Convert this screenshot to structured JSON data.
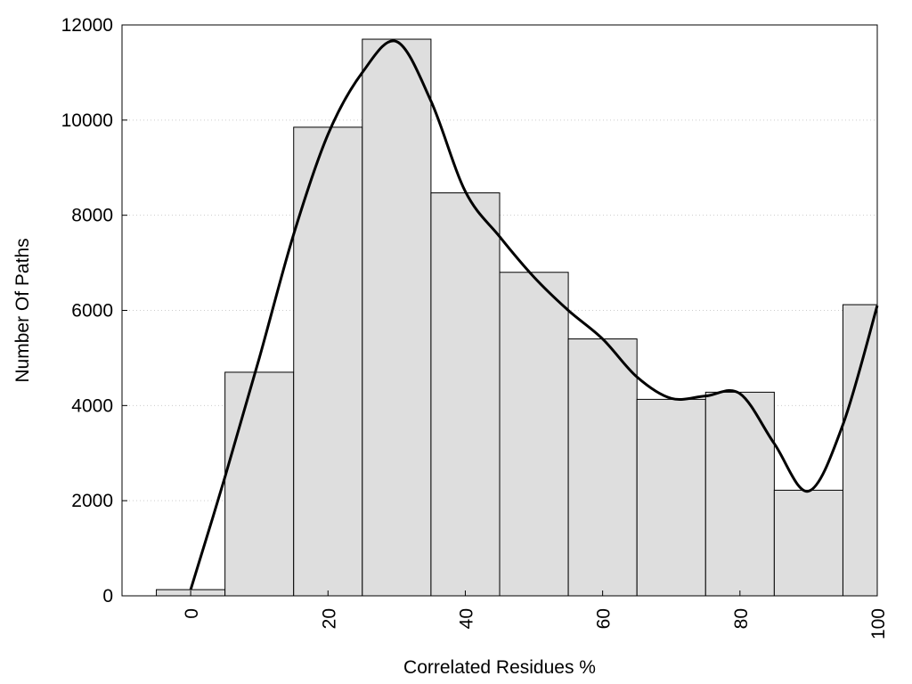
{
  "chart_data": {
    "type": "bar",
    "title": "",
    "xlabel": "Correlated Residues %",
    "ylabel": "Number Of Paths",
    "categories": [
      "0",
      "10",
      "20",
      "30",
      "40",
      "50",
      "60",
      "70",
      "80",
      "90",
      "100"
    ],
    "bin_width": 10,
    "values": [
      130,
      4700,
      9850,
      11700,
      8470,
      6800,
      5400,
      4130,
      4280,
      2220,
      6120
    ],
    "curve": {
      "x": [
        0,
        5,
        10,
        15,
        20,
        25,
        30,
        35,
        40,
        45,
        50,
        55,
        60,
        65,
        70,
        75,
        80,
        85,
        90,
        95,
        100
      ],
      "y": [
        130,
        2500,
        5000,
        7600,
        9700,
        11000,
        11650,
        10400,
        8500,
        7550,
        6700,
        6000,
        5400,
        4600,
        4150,
        4200,
        4250,
        3200,
        2200,
        3600,
        6100
      ]
    },
    "xlim": [
      -10,
      100
    ],
    "ylim": [
      0,
      12000
    ],
    "xticks": [
      0,
      20,
      40,
      60,
      80,
      100
    ],
    "yticks": [
      0,
      2000,
      4000,
      6000,
      8000,
      10000,
      12000
    ],
    "grid": "horizontal dotted",
    "legend": "none",
    "colors": {
      "bar_fill": "#dedede",
      "bar_edge": "#000000",
      "curve": "#000000",
      "grid": "#cccccc"
    }
  }
}
